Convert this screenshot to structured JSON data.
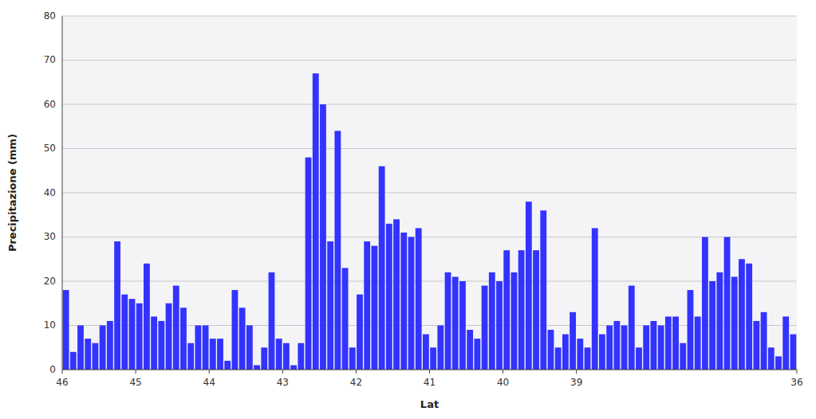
{
  "chart_data": {
    "type": "bar",
    "xlabel": "Lat",
    "ylabel": "Precipitazione (mm)",
    "x": [
      45.95,
      45.85,
      45.75,
      45.65,
      45.55,
      45.45,
      45.35,
      45.25,
      45.15,
      45.05,
      44.95,
      44.85,
      44.75,
      44.65,
      44.55,
      44.45,
      44.35,
      44.25,
      44.15,
      44.05,
      43.95,
      43.85,
      43.75,
      43.65,
      43.55,
      43.45,
      43.35,
      43.25,
      43.15,
      43.05,
      42.95,
      42.85,
      42.75,
      42.65,
      42.55,
      42.45,
      42.35,
      42.25,
      42.15,
      42.05,
      41.95,
      41.85,
      41.75,
      41.65,
      41.55,
      41.45,
      41.35,
      41.25,
      41.15,
      41.05,
      40.95,
      40.85,
      40.75,
      40.65,
      40.55,
      40.45,
      40.35,
      40.25,
      40.15,
      40.05,
      39.95,
      39.85,
      39.75,
      39.65,
      39.55,
      39.45,
      39.35,
      39.25,
      39.15,
      39.05,
      38.95,
      38.85,
      38.75,
      38.65,
      38.55,
      38.45,
      38.35,
      38.25,
      38.15,
      38.05,
      37.95,
      37.85,
      37.75,
      37.65,
      37.55,
      37.45,
      37.35,
      37.25,
      37.15,
      37.05,
      36.95,
      36.85,
      36.75,
      36.65,
      36.55,
      36.45,
      36.35,
      36.25,
      36.15,
      36.05
    ],
    "values": [
      18,
      4,
      10,
      7,
      6,
      10,
      11,
      29,
      17,
      16,
      15,
      24,
      12,
      11,
      15,
      19,
      14,
      6,
      10,
      10,
      7,
      7,
      2,
      18,
      14,
      10,
      1,
      5,
      22,
      7,
      6,
      1,
      6,
      48,
      67,
      60,
      29,
      54,
      23,
      5,
      17,
      29,
      28,
      46,
      33,
      34,
      31,
      30,
      32,
      8,
      5,
      10,
      22,
      21,
      20,
      9,
      7,
      19,
      22,
      20,
      27,
      22,
      27,
      38,
      27,
      36,
      9,
      5,
      8,
      13,
      7,
      5,
      32,
      8,
      10,
      11,
      10,
      19,
      5,
      10,
      11,
      10,
      12,
      12,
      6,
      18,
      12,
      30,
      20,
      22,
      30,
      21,
      25,
      24,
      11,
      13,
      5,
      3,
      12,
      8
    ],
    "color": "#3333ff",
    "xlim": [
      46,
      36
    ],
    "xticks": [
      46,
      45,
      44,
      43,
      42,
      41,
      40,
      39,
      36
    ],
    "ylim": [
      0,
      80
    ],
    "yticks": [
      0,
      10,
      20,
      30,
      40,
      50,
      60,
      70,
      80
    ],
    "grid": true
  }
}
